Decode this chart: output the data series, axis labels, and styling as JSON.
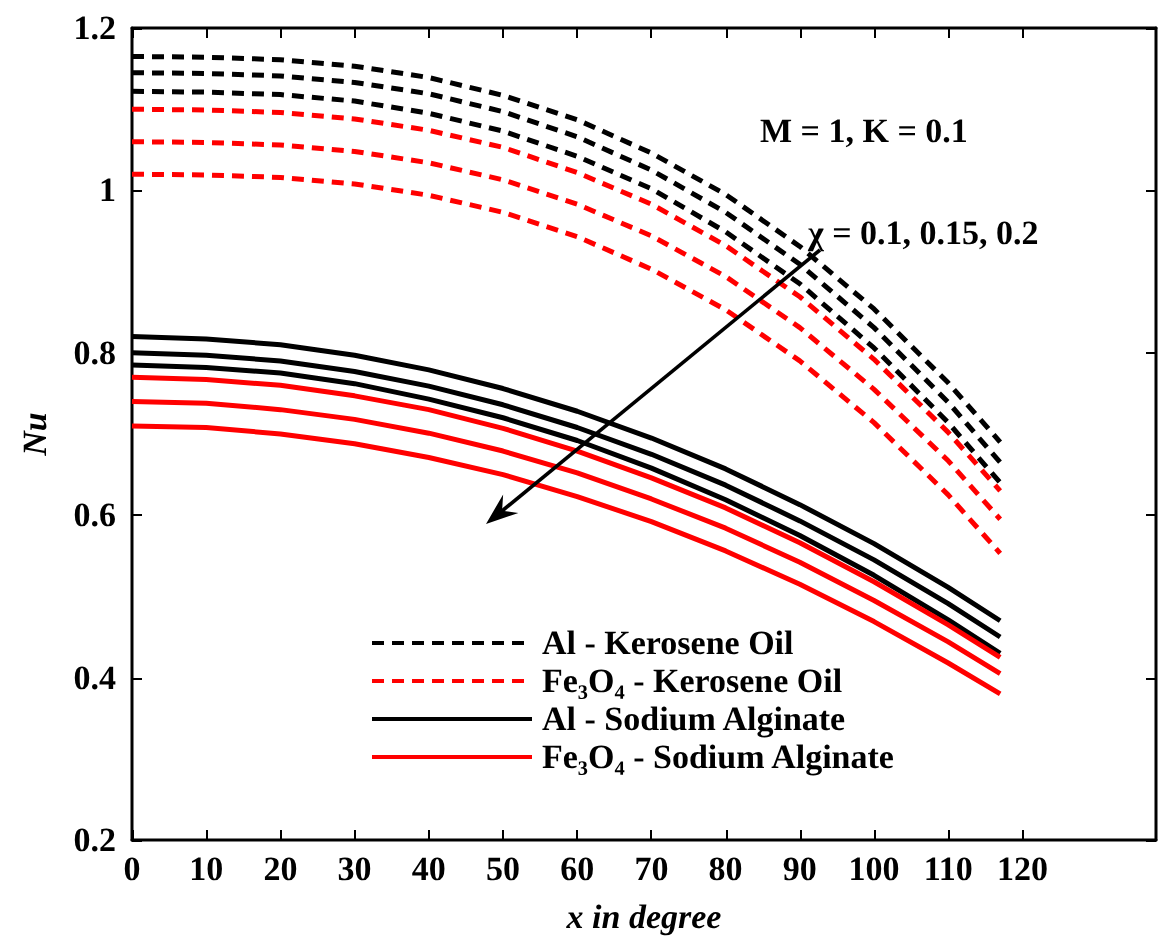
{
  "chart_data": {
    "type": "line",
    "xlabel": "x in degree",
    "ylabel": "Nu",
    "x": [
      0,
      10,
      20,
      30,
      40,
      50,
      60,
      70,
      80,
      90,
      100,
      110,
      117
    ],
    "xlim": [
      0,
      138
    ],
    "xticks": [
      0,
      10,
      20,
      30,
      40,
      50,
      60,
      70,
      80,
      90,
      100,
      110,
      120
    ],
    "ylim": [
      0.2,
      1.2
    ],
    "yticks": [
      0.2,
      0.4,
      0.6,
      0.8,
      1,
      1.2
    ],
    "grid": false,
    "legend": "bottom left",
    "marker": "none",
    "annotations": [
      "M = 1, K = 0.1",
      "χ = 0.1, 0.15, 0.2"
    ],
    "series": [
      {
        "name": "Al - Kerosene Oil",
        "color": "#000000",
        "line_style": "dashed",
        "values": [
          1.165,
          1.164,
          1.161,
          1.153,
          1.139,
          1.117,
          1.087,
          1.046,
          0.995,
          0.931,
          0.854,
          0.763,
          0.69
        ]
      },
      {
        "color": "#000000",
        "line_style": "dashed",
        "values": [
          1.145,
          1.144,
          1.141,
          1.133,
          1.119,
          1.097,
          1.066,
          1.025,
          0.973,
          0.909,
          0.831,
          0.739,
          0.665
        ]
      },
      {
        "color": "#000000",
        "line_style": "dashed",
        "values": [
          1.122,
          1.121,
          1.118,
          1.11,
          1.095,
          1.073,
          1.042,
          1.002,
          0.949,
          0.885,
          0.806,
          0.714,
          0.64
        ]
      },
      {
        "name": "Fe₃O₄ - Kerosene Oil",
        "color": "#ff0000",
        "line_style": "dashed",
        "values": [
          1.1,
          1.099,
          1.096,
          1.088,
          1.074,
          1.053,
          1.022,
          0.983,
          0.932,
          0.869,
          0.792,
          0.702,
          0.63
        ]
      },
      {
        "color": "#ff0000",
        "line_style": "dashed",
        "values": [
          1.06,
          1.059,
          1.056,
          1.048,
          1.034,
          1.013,
          0.983,
          0.944,
          0.894,
          0.831,
          0.755,
          0.667,
          0.595
        ]
      },
      {
        "color": "#ff0000",
        "line_style": "dashed",
        "values": [
          1.02,
          1.019,
          1.016,
          1.008,
          0.994,
          0.973,
          0.943,
          0.903,
          0.853,
          0.79,
          0.714,
          0.625,
          0.553
        ]
      },
      {
        "name": "Al - Sodium Alginate",
        "color": "#000000",
        "line_style": "solid",
        "values": [
          0.82,
          0.817,
          0.81,
          0.797,
          0.779,
          0.756,
          0.728,
          0.695,
          0.657,
          0.613,
          0.565,
          0.511,
          0.47
        ]
      },
      {
        "color": "#000000",
        "line_style": "solid",
        "values": [
          0.8,
          0.797,
          0.79,
          0.777,
          0.759,
          0.736,
          0.708,
          0.675,
          0.637,
          0.593,
          0.545,
          0.491,
          0.45
        ]
      },
      {
        "color": "#000000",
        "line_style": "solid",
        "values": [
          0.785,
          0.782,
          0.775,
          0.762,
          0.743,
          0.72,
          0.692,
          0.658,
          0.619,
          0.575,
          0.526,
          0.471,
          0.43
        ]
      },
      {
        "name": "Fe₃O₄ - Sodium Alginate",
        "color": "#ff0000",
        "line_style": "solid",
        "values": [
          0.77,
          0.767,
          0.76,
          0.747,
          0.73,
          0.707,
          0.679,
          0.646,
          0.609,
          0.566,
          0.518,
          0.465,
          0.425
        ]
      },
      {
        "color": "#ff0000",
        "line_style": "solid",
        "values": [
          0.74,
          0.738,
          0.73,
          0.718,
          0.701,
          0.679,
          0.652,
          0.62,
          0.584,
          0.542,
          0.495,
          0.444,
          0.405
        ]
      },
      {
        "color": "#ff0000",
        "line_style": "solid",
        "values": [
          0.71,
          0.708,
          0.7,
          0.688,
          0.671,
          0.65,
          0.623,
          0.592,
          0.556,
          0.515,
          0.469,
          0.418,
          0.38
        ]
      }
    ]
  }
}
